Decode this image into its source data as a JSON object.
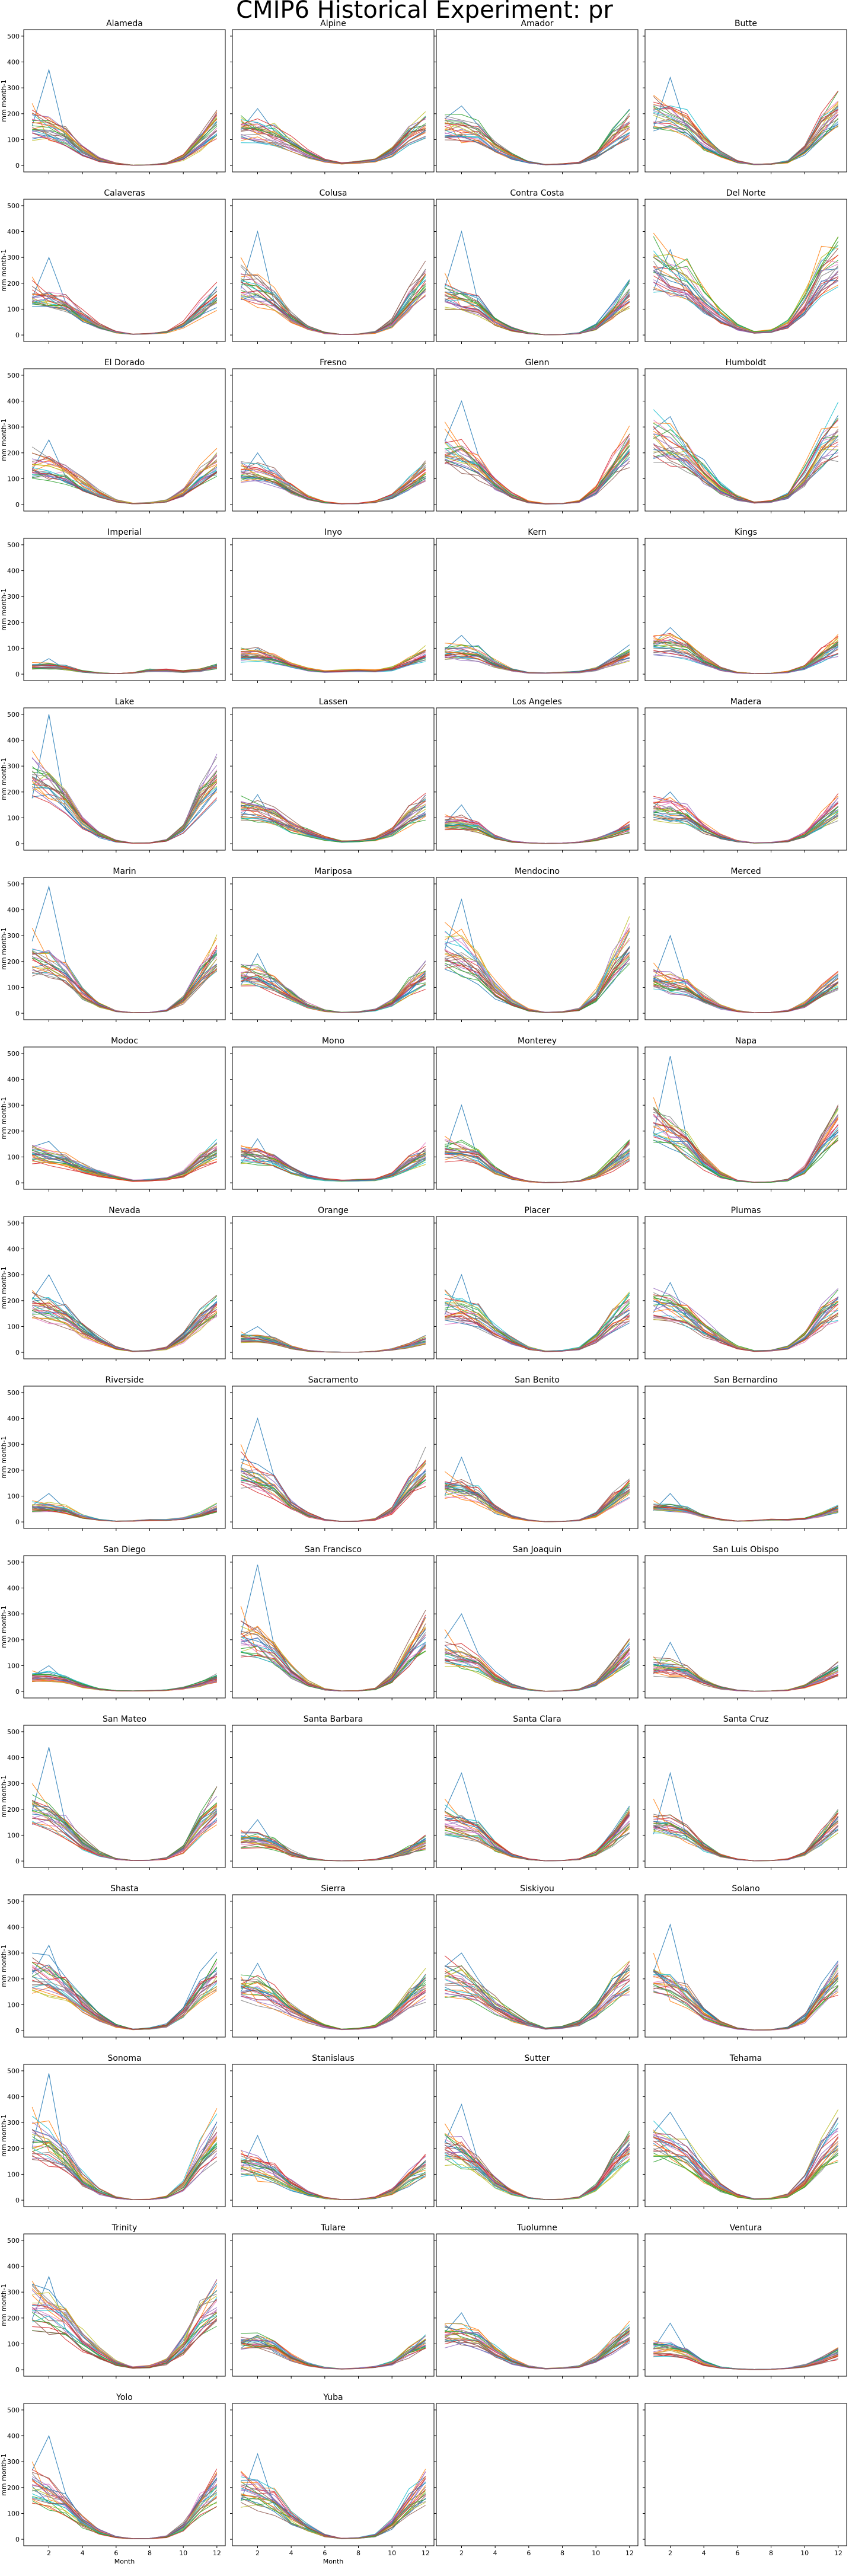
{
  "figure": {
    "suptitle": "CMIP6 Historical Experiment: pr",
    "ylabel": "mm month-1",
    "xlabel": "Month",
    "xticks": [
      2,
      4,
      6,
      8,
      10,
      12
    ],
    "yticks": [
      0,
      100,
      200,
      300,
      400,
      500
    ],
    "xlim": [
      0.5,
      12.5
    ],
    "ylim": [
      -25,
      525
    ],
    "ncols": 4,
    "nrows": 15,
    "colors": [
      "#1f77b4",
      "#ff7f0e",
      "#2ca02c",
      "#d62728",
      "#9467bd",
      "#8c564b",
      "#e377c2",
      "#7f7f7f",
      "#bcbd22",
      "#17becf"
    ]
  },
  "chart_data": {
    "type": "line",
    "note_series": "each panel shows many overlapping model lines; summarized as a mean annual cycle plus spread",
    "months": [
      1,
      2,
      3,
      4,
      5,
      6,
      7,
      8,
      9,
      10,
      11,
      12
    ],
    "panels": [
      {
        "title": "Alameda",
        "mean": [
          150,
          140,
          110,
          55,
          22,
          7,
          1,
          2,
          7,
          30,
          90,
          160
        ],
        "peak": 370
      },
      {
        "title": "Alpine",
        "mean": [
          140,
          130,
          120,
          80,
          45,
          18,
          8,
          12,
          20,
          50,
          110,
          150
        ],
        "peak": 220
      },
      {
        "title": "Amador",
        "mean": [
          140,
          140,
          120,
          70,
          35,
          12,
          3,
          5,
          10,
          40,
          100,
          150
        ],
        "peak": 230
      },
      {
        "title": "Butte",
        "mean": [
          210,
          190,
          160,
          90,
          45,
          15,
          4,
          6,
          15,
          60,
          150,
          220
        ],
        "peak": 340
      },
      {
        "title": "Calaveras",
        "mean": [
          150,
          140,
          120,
          70,
          35,
          12,
          3,
          5,
          12,
          40,
          100,
          150
        ],
        "peak": 300
      },
      {
        "title": "Colusa",
        "mean": [
          190,
          170,
          130,
          65,
          28,
          8,
          2,
          3,
          10,
          45,
          130,
          200
        ],
        "peak": 400
      },
      {
        "title": "Contra Costa",
        "mean": [
          150,
          140,
          110,
          55,
          22,
          7,
          1,
          2,
          7,
          30,
          90,
          160
        ],
        "peak": 400
      },
      {
        "title": "Del Norte",
        "mean": [
          270,
          230,
          200,
          130,
          70,
          30,
          10,
          15,
          40,
          120,
          230,
          280
        ],
        "peak": 330
      },
      {
        "title": "El Dorado",
        "mean": [
          150,
          140,
          120,
          75,
          40,
          14,
          4,
          6,
          14,
          45,
          105,
          155
        ],
        "peak": 250
      },
      {
        "title": "Fresno",
        "mean": [
          120,
          115,
          100,
          55,
          25,
          8,
          3,
          4,
          10,
          30,
          75,
          120
        ],
        "peak": 200
      },
      {
        "title": "Glenn",
        "mean": [
          210,
          190,
          150,
          80,
          35,
          10,
          3,
          4,
          12,
          55,
          150,
          230
        ],
        "peak": 400
      },
      {
        "title": "Humboldt",
        "mean": [
          260,
          230,
          190,
          120,
          60,
          25,
          8,
          12,
          35,
          110,
          220,
          270
        ],
        "peak": 340
      },
      {
        "title": "Imperial",
        "mean": [
          30,
          30,
          25,
          10,
          4,
          2,
          5,
          15,
          15,
          10,
          15,
          30
        ],
        "peak": 60
      },
      {
        "title": "Inyo",
        "mean": [
          75,
          75,
          60,
          35,
          18,
          10,
          12,
          14,
          12,
          20,
          45,
          75
        ],
        "peak": 100
      },
      {
        "title": "Kern",
        "mean": [
          85,
          85,
          75,
          40,
          15,
          5,
          4,
          6,
          8,
          20,
          50,
          80
        ],
        "peak": 150
      },
      {
        "title": "Kings",
        "mean": [
          110,
          110,
          90,
          50,
          20,
          6,
          2,
          3,
          8,
          25,
          70,
          110
        ],
        "peak": 180
      },
      {
        "title": "Lake",
        "mean": [
          230,
          210,
          160,
          80,
          35,
          10,
          2,
          3,
          12,
          55,
          160,
          240
        ],
        "peak": 500
      },
      {
        "title": "Lassen",
        "mean": [
          130,
          120,
          100,
          65,
          40,
          20,
          8,
          10,
          18,
          45,
          100,
          140
        ],
        "peak": 190
      },
      {
        "title": "Los Angeles",
        "mean": [
          75,
          75,
          60,
          25,
          8,
          3,
          1,
          2,
          5,
          15,
          35,
          60
        ],
        "peak": 150
      },
      {
        "title": "Madera",
        "mean": [
          140,
          130,
          110,
          60,
          28,
          10,
          3,
          4,
          10,
          35,
          90,
          140
        ],
        "peak": 200
      },
      {
        "title": "Marin",
        "mean": [
          210,
          190,
          150,
          75,
          30,
          8,
          2,
          3,
          10,
          50,
          140,
          220
        ],
        "peak": 490
      },
      {
        "title": "Mariposa",
        "mean": [
          150,
          140,
          115,
          65,
          30,
          10,
          3,
          5,
          12,
          40,
          100,
          150
        ],
        "peak": 230
      },
      {
        "title": "Mendocino",
        "mean": [
          250,
          220,
          170,
          90,
          40,
          12,
          3,
          5,
          15,
          65,
          180,
          260
        ],
        "peak": 440
      },
      {
        "title": "Merced",
        "mean": [
          130,
          120,
          100,
          55,
          25,
          8,
          2,
          3,
          9,
          32,
          85,
          130
        ],
        "peak": 300
      },
      {
        "title": "Modoc",
        "mean": [
          110,
          100,
          85,
          55,
          35,
          20,
          8,
          10,
          15,
          35,
          85,
          120
        ],
        "peak": 160
      },
      {
        "title": "Mono",
        "mean": [
          110,
          100,
          85,
          50,
          25,
          12,
          8,
          10,
          12,
          30,
          75,
          110
        ],
        "peak": 170
      },
      {
        "title": "Monterey",
        "mean": [
          120,
          115,
          95,
          45,
          18,
          5,
          1,
          2,
          6,
          25,
          70,
          120
        ],
        "peak": 300
      },
      {
        "title": "Napa",
        "mean": [
          210,
          190,
          150,
          75,
          30,
          8,
          2,
          3,
          10,
          50,
          140,
          220
        ],
        "peak": 490
      },
      {
        "title": "Nevada",
        "mean": [
          170,
          160,
          135,
          85,
          45,
          16,
          4,
          6,
          15,
          55,
          125,
          175
        ],
        "peak": 300
      },
      {
        "title": "Orange",
        "mean": [
          55,
          55,
          45,
          20,
          6,
          2,
          1,
          1,
          4,
          12,
          28,
          50
        ],
        "peak": 100
      },
      {
        "title": "Placer",
        "mean": [
          170,
          160,
          135,
          85,
          45,
          16,
          4,
          6,
          15,
          55,
          125,
          175
        ],
        "peak": 300
      },
      {
        "title": "Plumas",
        "mean": [
          180,
          170,
          145,
          90,
          50,
          18,
          5,
          7,
          18,
          60,
          135,
          185
        ],
        "peak": 270
      },
      {
        "title": "Riverside",
        "mean": [
          55,
          55,
          45,
          20,
          8,
          3,
          4,
          8,
          8,
          12,
          28,
          50
        ],
        "peak": 110
      },
      {
        "title": "Sacramento",
        "mean": [
          190,
          170,
          130,
          65,
          28,
          8,
          2,
          3,
          10,
          45,
          130,
          200
        ],
        "peak": 400
      },
      {
        "title": "San Benito",
        "mean": [
          130,
          125,
          100,
          50,
          20,
          6,
          1,
          2,
          6,
          28,
          80,
          130
        ],
        "peak": 250
      },
      {
        "title": "San Bernardino",
        "mean": [
          55,
          55,
          45,
          22,
          9,
          3,
          5,
          9,
          8,
          12,
          28,
          50
        ],
        "peak": 110
      },
      {
        "title": "San Diego",
        "mean": [
          55,
          55,
          45,
          22,
          8,
          3,
          2,
          3,
          5,
          12,
          28,
          50
        ],
        "peak": 100
      },
      {
        "title": "San Francisco",
        "mean": [
          210,
          190,
          150,
          75,
          30,
          8,
          2,
          3,
          10,
          50,
          140,
          220
        ],
        "peak": 490
      },
      {
        "title": "San Joaquin",
        "mean": [
          150,
          140,
          110,
          55,
          22,
          7,
          1,
          2,
          7,
          30,
          90,
          160
        ],
        "peak": 300
      },
      {
        "title": "San Luis Obispo",
        "mean": [
          90,
          90,
          75,
          35,
          14,
          4,
          1,
          2,
          5,
          20,
          50,
          85
        ],
        "peak": 190
      },
      {
        "title": "San Mateo",
        "mean": [
          190,
          170,
          130,
          65,
          28,
          8,
          2,
          3,
          10,
          45,
          130,
          200
        ],
        "peak": 440
      },
      {
        "title": "Santa Barbara",
        "mean": [
          80,
          80,
          65,
          30,
          10,
          3,
          1,
          2,
          5,
          18,
          40,
          70
        ],
        "peak": 160
      },
      {
        "title": "Santa Clara",
        "mean": [
          150,
          140,
          110,
          55,
          22,
          7,
          1,
          2,
          7,
          30,
          90,
          160
        ],
        "peak": 340
      },
      {
        "title": "Santa Cruz",
        "mean": [
          150,
          140,
          110,
          55,
          22,
          7,
          1,
          2,
          7,
          30,
          90,
          160
        ],
        "peak": 340
      },
      {
        "title": "Shasta",
        "mean": [
          230,
          210,
          175,
          105,
          55,
          20,
          5,
          8,
          20,
          75,
          170,
          240
        ],
        "peak": 330
      },
      {
        "title": "Sierra",
        "mean": [
          160,
          150,
          125,
          80,
          45,
          17,
          5,
          7,
          16,
          55,
          120,
          170
        ],
        "peak": 260
      },
      {
        "title": "Siskiyou",
        "mean": [
          200,
          180,
          150,
          95,
          55,
          25,
          8,
          12,
          28,
          80,
          160,
          210
        ],
        "peak": 300
      },
      {
        "title": "Solano",
        "mean": [
          190,
          170,
          130,
          65,
          28,
          8,
          2,
          3,
          10,
          45,
          130,
          200
        ],
        "peak": 410
      },
      {
        "title": "Sonoma",
        "mean": [
          230,
          210,
          160,
          80,
          35,
          10,
          2,
          3,
          12,
          55,
          160,
          240
        ],
        "peak": 490
      },
      {
        "title": "Stanislaus",
        "mean": [
          130,
          120,
          100,
          55,
          25,
          8,
          2,
          3,
          9,
          32,
          85,
          130
        ],
        "peak": 250
      },
      {
        "title": "Sutter",
        "mean": [
          190,
          170,
          130,
          65,
          28,
          8,
          2,
          3,
          10,
          45,
          130,
          200
        ],
        "peak": 370
      },
      {
        "title": "Tehama",
        "mean": [
          230,
          210,
          175,
          100,
          50,
          18,
          4,
          6,
          18,
          70,
          165,
          240
        ],
        "peak": 340
      },
      {
        "title": "Trinity",
        "mean": [
          240,
          215,
          180,
          110,
          60,
          25,
          8,
          12,
          30,
          95,
          190,
          250
        ],
        "peak": 360
      },
      {
        "title": "Tulare",
        "mean": [
          100,
          100,
          85,
          45,
          20,
          7,
          3,
          5,
          10,
          25,
          65,
          100
        ],
        "peak": 130
      },
      {
        "title": "Tuolumne",
        "mean": [
          130,
          125,
          110,
          65,
          32,
          12,
          4,
          6,
          12,
          38,
          90,
          135
        ],
        "peak": 220
      },
      {
        "title": "Ventura",
        "mean": [
          75,
          75,
          60,
          25,
          8,
          3,
          1,
          2,
          5,
          15,
          35,
          60
        ],
        "peak": 180
      },
      {
        "title": "Yolo",
        "mean": [
          190,
          170,
          130,
          65,
          28,
          8,
          2,
          3,
          10,
          45,
          130,
          200
        ],
        "peak": 400
      },
      {
        "title": "Yuba",
        "mean": [
          190,
          175,
          145,
          85,
          42,
          14,
          3,
          5,
          14,
          58,
          140,
          200
        ],
        "peak": 330
      },
      {
        "title": "",
        "empty": true
      },
      {
        "title": "",
        "empty": true
      }
    ]
  }
}
